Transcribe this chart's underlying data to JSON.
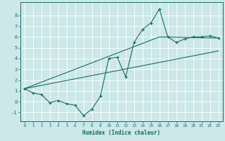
{
  "xlabel": "Humidex (Indice chaleur)",
  "ylabel": "",
  "background_color": "#cce8e8",
  "grid_color": "#ffffff",
  "line_color": "#1a6b6b",
  "xlim": [
    -0.5,
    23.5
  ],
  "ylim": [
    -1.8,
    9.2
  ],
  "xticks": [
    0,
    1,
    2,
    3,
    4,
    5,
    6,
    7,
    8,
    9,
    10,
    11,
    12,
    13,
    14,
    15,
    16,
    17,
    18,
    19,
    20,
    21,
    22,
    23
  ],
  "yticks": [
    -1,
    0,
    1,
    2,
    3,
    4,
    5,
    6,
    7,
    8
  ],
  "curve1_x": [
    0,
    1,
    2,
    3,
    4,
    5,
    6,
    7,
    8,
    9,
    10,
    11,
    12,
    13,
    14,
    15,
    16,
    17,
    18,
    19,
    20,
    21,
    22,
    23
  ],
  "curve1_y": [
    1.2,
    0.8,
    0.65,
    -0.1,
    0.1,
    -0.2,
    -0.35,
    -1.3,
    -0.7,
    0.5,
    4.0,
    4.1,
    2.3,
    5.5,
    6.7,
    7.3,
    8.6,
    6.0,
    5.5,
    5.8,
    6.0,
    6.0,
    6.1,
    5.9
  ],
  "curve2_x": [
    0,
    23
  ],
  "curve2_y": [
    1.2,
    4.7
  ],
  "curve3_x": [
    0,
    16,
    23
  ],
  "curve3_y": [
    1.2,
    6.0,
    5.9
  ]
}
